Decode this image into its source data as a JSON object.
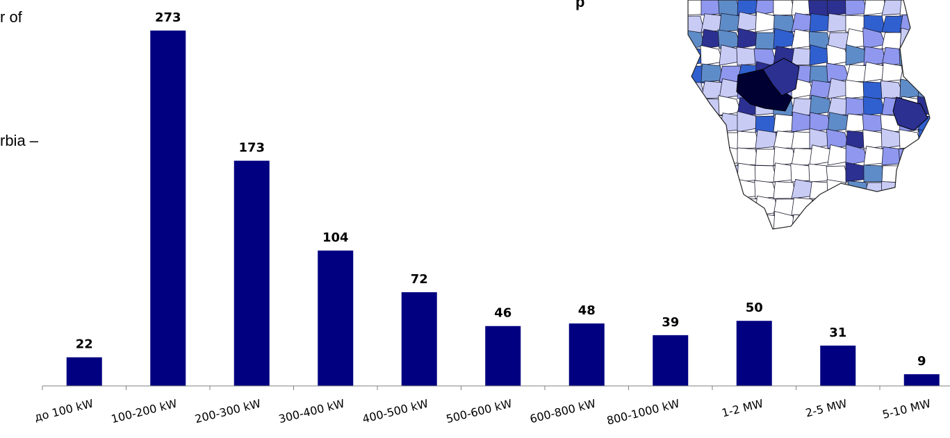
{
  "side_text": {
    "line1": "r of",
    "line2": "rbia –"
  },
  "top_text": "p",
  "chart_data": {
    "type": "bar",
    "categories": [
      "до 100 kW",
      "100-200 kW",
      "200-300 kW",
      "300-400 kW",
      "400-500 kW",
      "500-600 kW",
      "600-800 kW",
      "800-1000 kW",
      "1-2 MW",
      "2-5 MW",
      "5-10 MW"
    ],
    "values": [
      22,
      273,
      173,
      104,
      72,
      46,
      48,
      39,
      50,
      31,
      9
    ],
    "data_labels": [
      "22",
      "273",
      "173",
      "104",
      "72",
      "46",
      "48",
      "39",
      "50",
      "31",
      "9"
    ],
    "title": "",
    "xlabel": "",
    "ylabel": "",
    "ylim": [
      0,
      273
    ],
    "grid": false,
    "bar_color": "#000080"
  },
  "map": {
    "colors": [
      "#ffffff",
      "#c8ccf5",
      "#8f98ee",
      "#5e8cc8",
      "#3060d0",
      "#2c3090",
      "#000033"
    ]
  }
}
